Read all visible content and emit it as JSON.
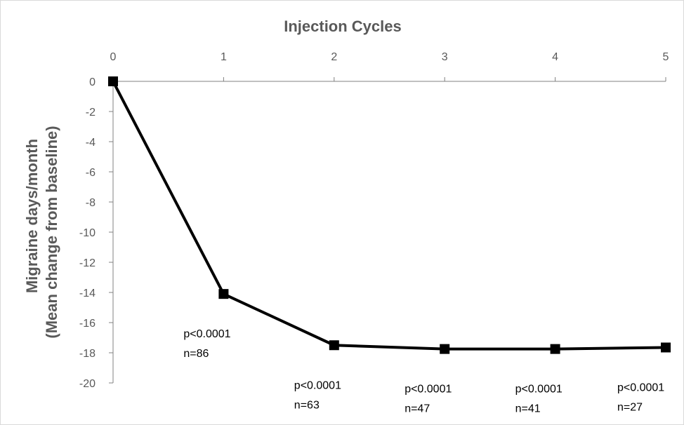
{
  "chart_data": {
    "type": "line",
    "title": "",
    "xlabel": "Injection Cycles",
    "ylabel_line1": "Migraine days/month",
    "ylabel_line2": "(Mean change from baseline)",
    "x": [
      0,
      1,
      2,
      3,
      4,
      5
    ],
    "xlim": [
      0,
      5
    ],
    "ylim": [
      -20,
      0
    ],
    "y_ticks": [
      0,
      -2,
      -4,
      -6,
      -8,
      -10,
      -12,
      -14,
      -16,
      -18,
      -20
    ],
    "x_axis_position": "top",
    "grid": false,
    "series": [
      {
        "values": [
          0,
          -14.1,
          -17.5,
          -17.75,
          -17.75,
          -17.65
        ],
        "color": "#000000",
        "marker": "square"
      }
    ],
    "annotations": [
      {
        "x": 1,
        "p": "p<0.0001",
        "n": "n=86"
      },
      {
        "x": 2,
        "p": "p<0.0001",
        "n": "n=63"
      },
      {
        "x": 3,
        "p": "p<0.0001",
        "n": "n=47"
      },
      {
        "x": 4,
        "p": "p<0.0001",
        "n": "n=41"
      },
      {
        "x": 5,
        "p": "p<0.0001",
        "n": "n=27"
      }
    ]
  }
}
